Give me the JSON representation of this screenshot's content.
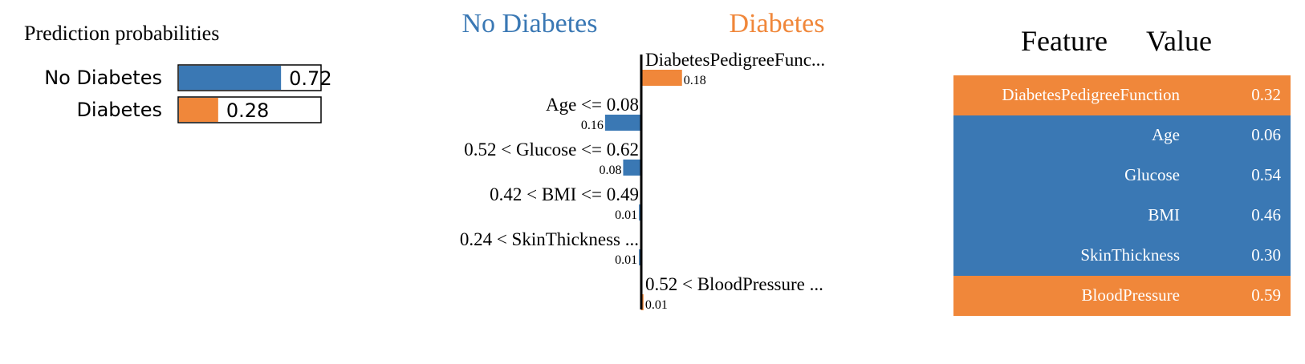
{
  "colors": {
    "no_diabetes": "#3a78b4",
    "diabetes": "#f0873a",
    "axis": "#000000",
    "text": "#000000"
  },
  "chart_data": [
    {
      "type": "bar",
      "title": "Prediction probabilities",
      "categories": [
        "No Diabetes",
        "Diabetes"
      ],
      "values": [
        0.72,
        0.28
      ],
      "value_labels": [
        "0.72",
        "0.28"
      ],
      "colors": [
        "#3a78b4",
        "#f0873a"
      ],
      "xlim": [
        0,
        1
      ],
      "orientation": "horizontal"
    },
    {
      "type": "bar",
      "orientation": "horizontal",
      "class_labels": {
        "negative": "No Diabetes",
        "positive": "Diabetes"
      },
      "categories": [
        "DiabetesPedigreeFunc...",
        "Age <= 0.08",
        "0.52 < Glucose <= 0.62",
        "0.42 < BMI <= 0.49",
        "0.24 < SkinThickness ...",
        "0.52 < BloodPressure ..."
      ],
      "values": [
        0.18,
        -0.16,
        -0.08,
        -0.01,
        -0.01,
        0.01
      ],
      "value_labels": [
        "0.18",
        "0.16",
        "0.08",
        "0.01",
        "0.01",
        "0.01"
      ]
    },
    {
      "type": "table",
      "columns": [
        "Feature",
        "Value"
      ],
      "rows": [
        {
          "feature": "DiabetesPedigreeFunction",
          "value": "0.32",
          "class": "diabetes"
        },
        {
          "feature": "Age",
          "value": "0.06",
          "class": "no_diabetes"
        },
        {
          "feature": "Glucose",
          "value": "0.54",
          "class": "no_diabetes"
        },
        {
          "feature": "BMI",
          "value": "0.46",
          "class": "no_diabetes"
        },
        {
          "feature": "SkinThickness",
          "value": "0.30",
          "class": "no_diabetes"
        },
        {
          "feature": "BloodPressure",
          "value": "0.59",
          "class": "diabetes"
        }
      ]
    }
  ]
}
